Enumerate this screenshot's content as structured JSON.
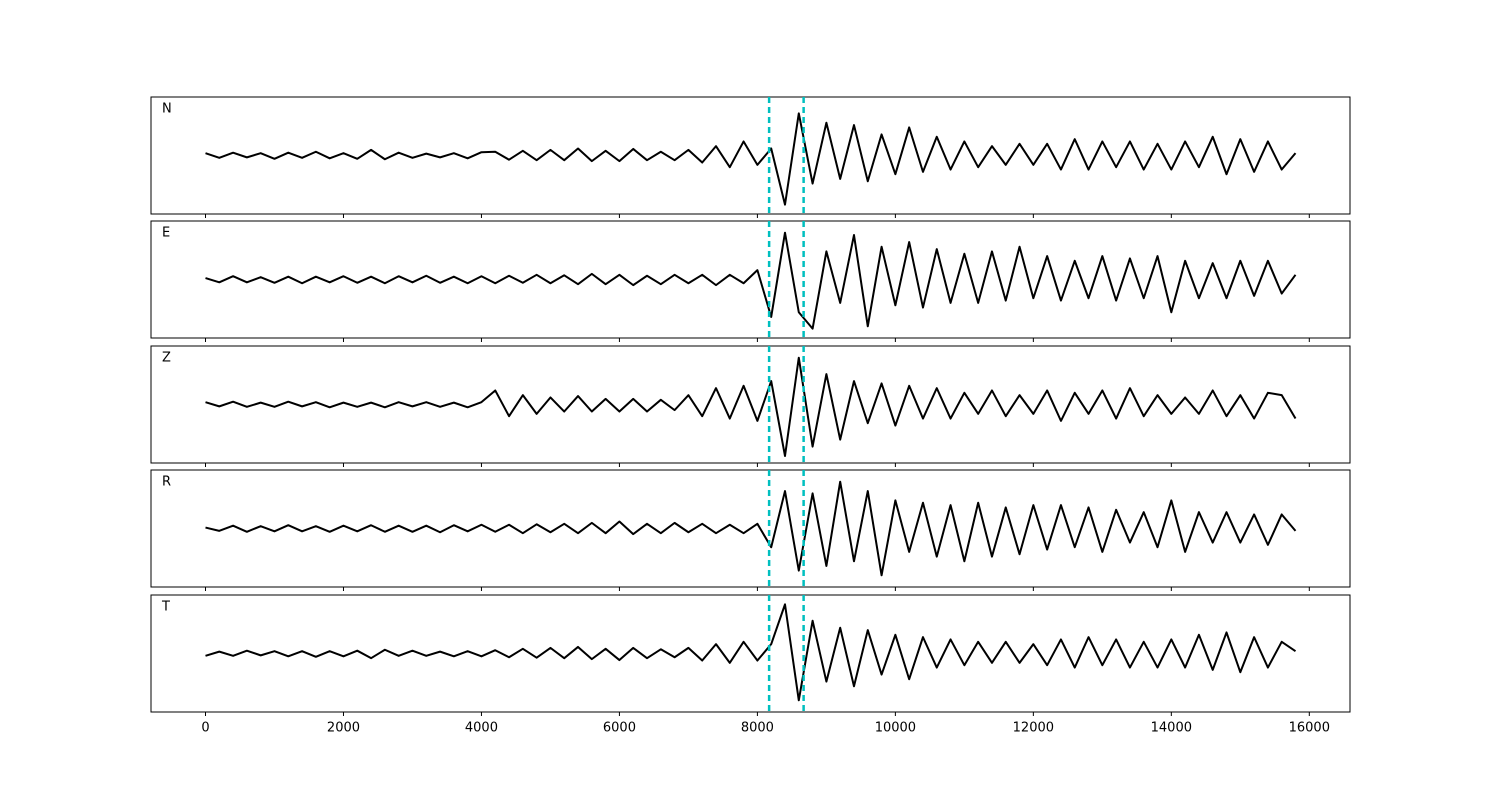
{
  "chart_data": {
    "type": "line",
    "x": [
      0,
      200,
      400,
      600,
      800,
      1000,
      1200,
      1400,
      1600,
      1800,
      2000,
      2200,
      2400,
      2600,
      2800,
      3000,
      3200,
      3400,
      3600,
      3800,
      4000,
      4200,
      4400,
      4600,
      4800,
      5000,
      5200,
      5400,
      5600,
      5800,
      6000,
      6200,
      6400,
      6600,
      6800,
      7000,
      7200,
      7400,
      7600,
      7800,
      8000,
      8200,
      8400,
      8600,
      8800,
      9000,
      9200,
      9400,
      9600,
      9800,
      10000,
      10200,
      10400,
      10600,
      10800,
      11000,
      11200,
      11400,
      11600,
      11800,
      12000,
      12200,
      12400,
      12600,
      12800,
      13000,
      13200,
      13400,
      13600,
      13800,
      14000,
      14200,
      14400,
      14600,
      14800,
      15000,
      15200,
      15400,
      15600,
      15800
    ],
    "series": [
      {
        "name": "N",
        "color": "#000000",
        "values": [
          0.05,
          -0.05,
          0.06,
          -0.04,
          0.05,
          -0.07,
          0.06,
          -0.05,
          0.08,
          -0.06,
          0.05,
          -0.07,
          0.12,
          -0.08,
          0.06,
          -0.05,
          0.04,
          -0.04,
          0.05,
          -0.06,
          0.07,
          0.08,
          -0.09,
          0.1,
          -0.1,
          0.12,
          -0.1,
          0.15,
          -0.12,
          0.1,
          -0.12,
          0.14,
          -0.1,
          0.08,
          -0.1,
          0.12,
          -0.15,
          0.2,
          -0.25,
          0.3,
          -0.2,
          0.15,
          -1.05,
          0.9,
          -0.6,
          0.7,
          -0.5,
          0.65,
          -0.55,
          0.45,
          -0.4,
          0.6,
          -0.35,
          0.4,
          -0.3,
          0.3,
          -0.25,
          0.2,
          -0.2,
          0.25,
          -0.2,
          0.25,
          -0.3,
          0.35,
          -0.3,
          0.3,
          -0.25,
          0.3,
          -0.3,
          0.25,
          -0.3,
          0.3,
          -0.25,
          0.4,
          -0.4,
          0.35,
          -0.35,
          0.3,
          -0.3,
          0.05
        ]
      },
      {
        "name": "E",
        "color": "#000000",
        "values": [
          0.03,
          -0.06,
          0.07,
          -0.06,
          0.05,
          -0.07,
          0.06,
          -0.08,
          0.06,
          -0.06,
          0.07,
          -0.07,
          0.06,
          -0.08,
          0.07,
          -0.06,
          0.08,
          -0.07,
          0.06,
          -0.08,
          0.07,
          -0.08,
          0.08,
          -0.07,
          0.1,
          -0.08,
          0.09,
          -0.1,
          0.12,
          -0.1,
          0.1,
          -0.12,
          0.08,
          -0.1,
          0.1,
          -0.08,
          0.1,
          -0.12,
          0.1,
          -0.08,
          0.2,
          -0.8,
          1.0,
          -0.7,
          -1.05,
          0.6,
          -0.5,
          0.95,
          -1.0,
          0.7,
          -0.55,
          0.8,
          -0.6,
          0.65,
          -0.5,
          0.55,
          -0.5,
          0.6,
          -0.45,
          0.7,
          -0.4,
          0.5,
          -0.45,
          0.4,
          -0.4,
          0.5,
          -0.45,
          0.45,
          -0.4,
          0.5,
          -0.7,
          0.4,
          -0.4,
          0.35,
          -0.4,
          0.4,
          -0.35,
          0.4,
          -0.3,
          0.1
        ]
      },
      {
        "name": "Z",
        "color": "#000000",
        "values": [
          0.05,
          -0.04,
          0.06,
          -0.05,
          0.04,
          -0.05,
          0.06,
          -0.04,
          0.05,
          -0.06,
          0.04,
          -0.05,
          0.04,
          -0.06,
          0.05,
          -0.04,
          0.05,
          -0.05,
          0.04,
          -0.06,
          0.05,
          0.3,
          -0.25,
          0.2,
          -0.2,
          0.15,
          -0.15,
          0.18,
          -0.15,
          0.12,
          -0.15,
          0.12,
          -0.15,
          0.1,
          -0.12,
          0.2,
          -0.25,
          0.35,
          -0.3,
          0.4,
          -0.35,
          0.5,
          -1.1,
          1.0,
          -0.9,
          0.65,
          -0.75,
          0.5,
          -0.4,
          0.45,
          -0.45,
          0.4,
          -0.3,
          0.35,
          -0.3,
          0.25,
          -0.2,
          0.3,
          -0.25,
          0.2,
          -0.2,
          0.3,
          -0.35,
          0.25,
          -0.2,
          0.3,
          -0.3,
          0.35,
          -0.25,
          0.2,
          -0.2,
          0.15,
          -0.2,
          0.3,
          -0.25,
          0.2,
          -0.3,
          0.25,
          0.2,
          -0.3
        ]
      },
      {
        "name": "R",
        "color": "#000000",
        "values": [
          0.02,
          -0.05,
          0.06,
          -0.07,
          0.05,
          -0.06,
          0.07,
          -0.06,
          0.05,
          -0.07,
          0.06,
          -0.06,
          0.07,
          -0.07,
          0.06,
          -0.07,
          0.06,
          -0.08,
          0.07,
          -0.06,
          0.08,
          -0.07,
          0.08,
          -0.1,
          0.09,
          -0.08,
          0.1,
          -0.1,
          0.12,
          -0.1,
          0.15,
          -0.12,
          0.1,
          -0.1,
          0.12,
          -0.08,
          0.1,
          -0.1,
          0.08,
          -0.1,
          0.1,
          -0.4,
          0.8,
          -0.9,
          0.75,
          -0.8,
          1.0,
          -0.7,
          0.8,
          -1.0,
          0.6,
          -0.5,
          0.55,
          -0.6,
          0.5,
          -0.7,
          0.55,
          -0.6,
          0.45,
          -0.55,
          0.5,
          -0.45,
          0.5,
          -0.4,
          0.45,
          -0.5,
          0.4,
          -0.3,
          0.35,
          -0.4,
          0.6,
          -0.5,
          0.35,
          -0.3,
          0.35,
          -0.3,
          0.3,
          -0.35,
          0.3,
          -0.05
        ]
      },
      {
        "name": "T",
        "color": "#000000",
        "values": [
          -0.05,
          0.04,
          -0.05,
          0.06,
          -0.04,
          0.05,
          -0.06,
          0.05,
          -0.07,
          0.05,
          -0.06,
          0.06,
          -0.1,
          0.08,
          -0.05,
          0.06,
          -0.05,
          0.04,
          -0.06,
          0.05,
          -0.06,
          0.07,
          -0.08,
          0.1,
          -0.09,
          0.12,
          -0.1,
          0.14,
          -0.12,
          0.1,
          -0.14,
          0.12,
          -0.1,
          0.09,
          -0.08,
          0.12,
          -0.15,
          0.2,
          -0.2,
          0.25,
          -0.15,
          0.2,
          1.05,
          -1.0,
          0.7,
          -0.6,
          0.55,
          -0.7,
          0.5,
          -0.45,
          0.4,
          -0.55,
          0.35,
          -0.3,
          0.3,
          -0.25,
          0.25,
          -0.2,
          0.25,
          -0.2,
          0.2,
          -0.25,
          0.3,
          -0.3,
          0.35,
          -0.25,
          0.3,
          -0.3,
          0.25,
          -0.3,
          0.3,
          -0.3,
          0.4,
          -0.35,
          0.45,
          -0.4,
          0.35,
          -0.3,
          0.25,
          0.05
        ]
      }
    ],
    "xlim": [
      -790,
      16590
    ],
    "xticks": [
      0,
      2000,
      4000,
      6000,
      8000,
      10000,
      12000,
      14000,
      16000
    ],
    "ylim": [
      -1.25,
      1.25
    ],
    "vlines": [
      8170,
      8670
    ],
    "vline_color": "#00bfbf"
  }
}
